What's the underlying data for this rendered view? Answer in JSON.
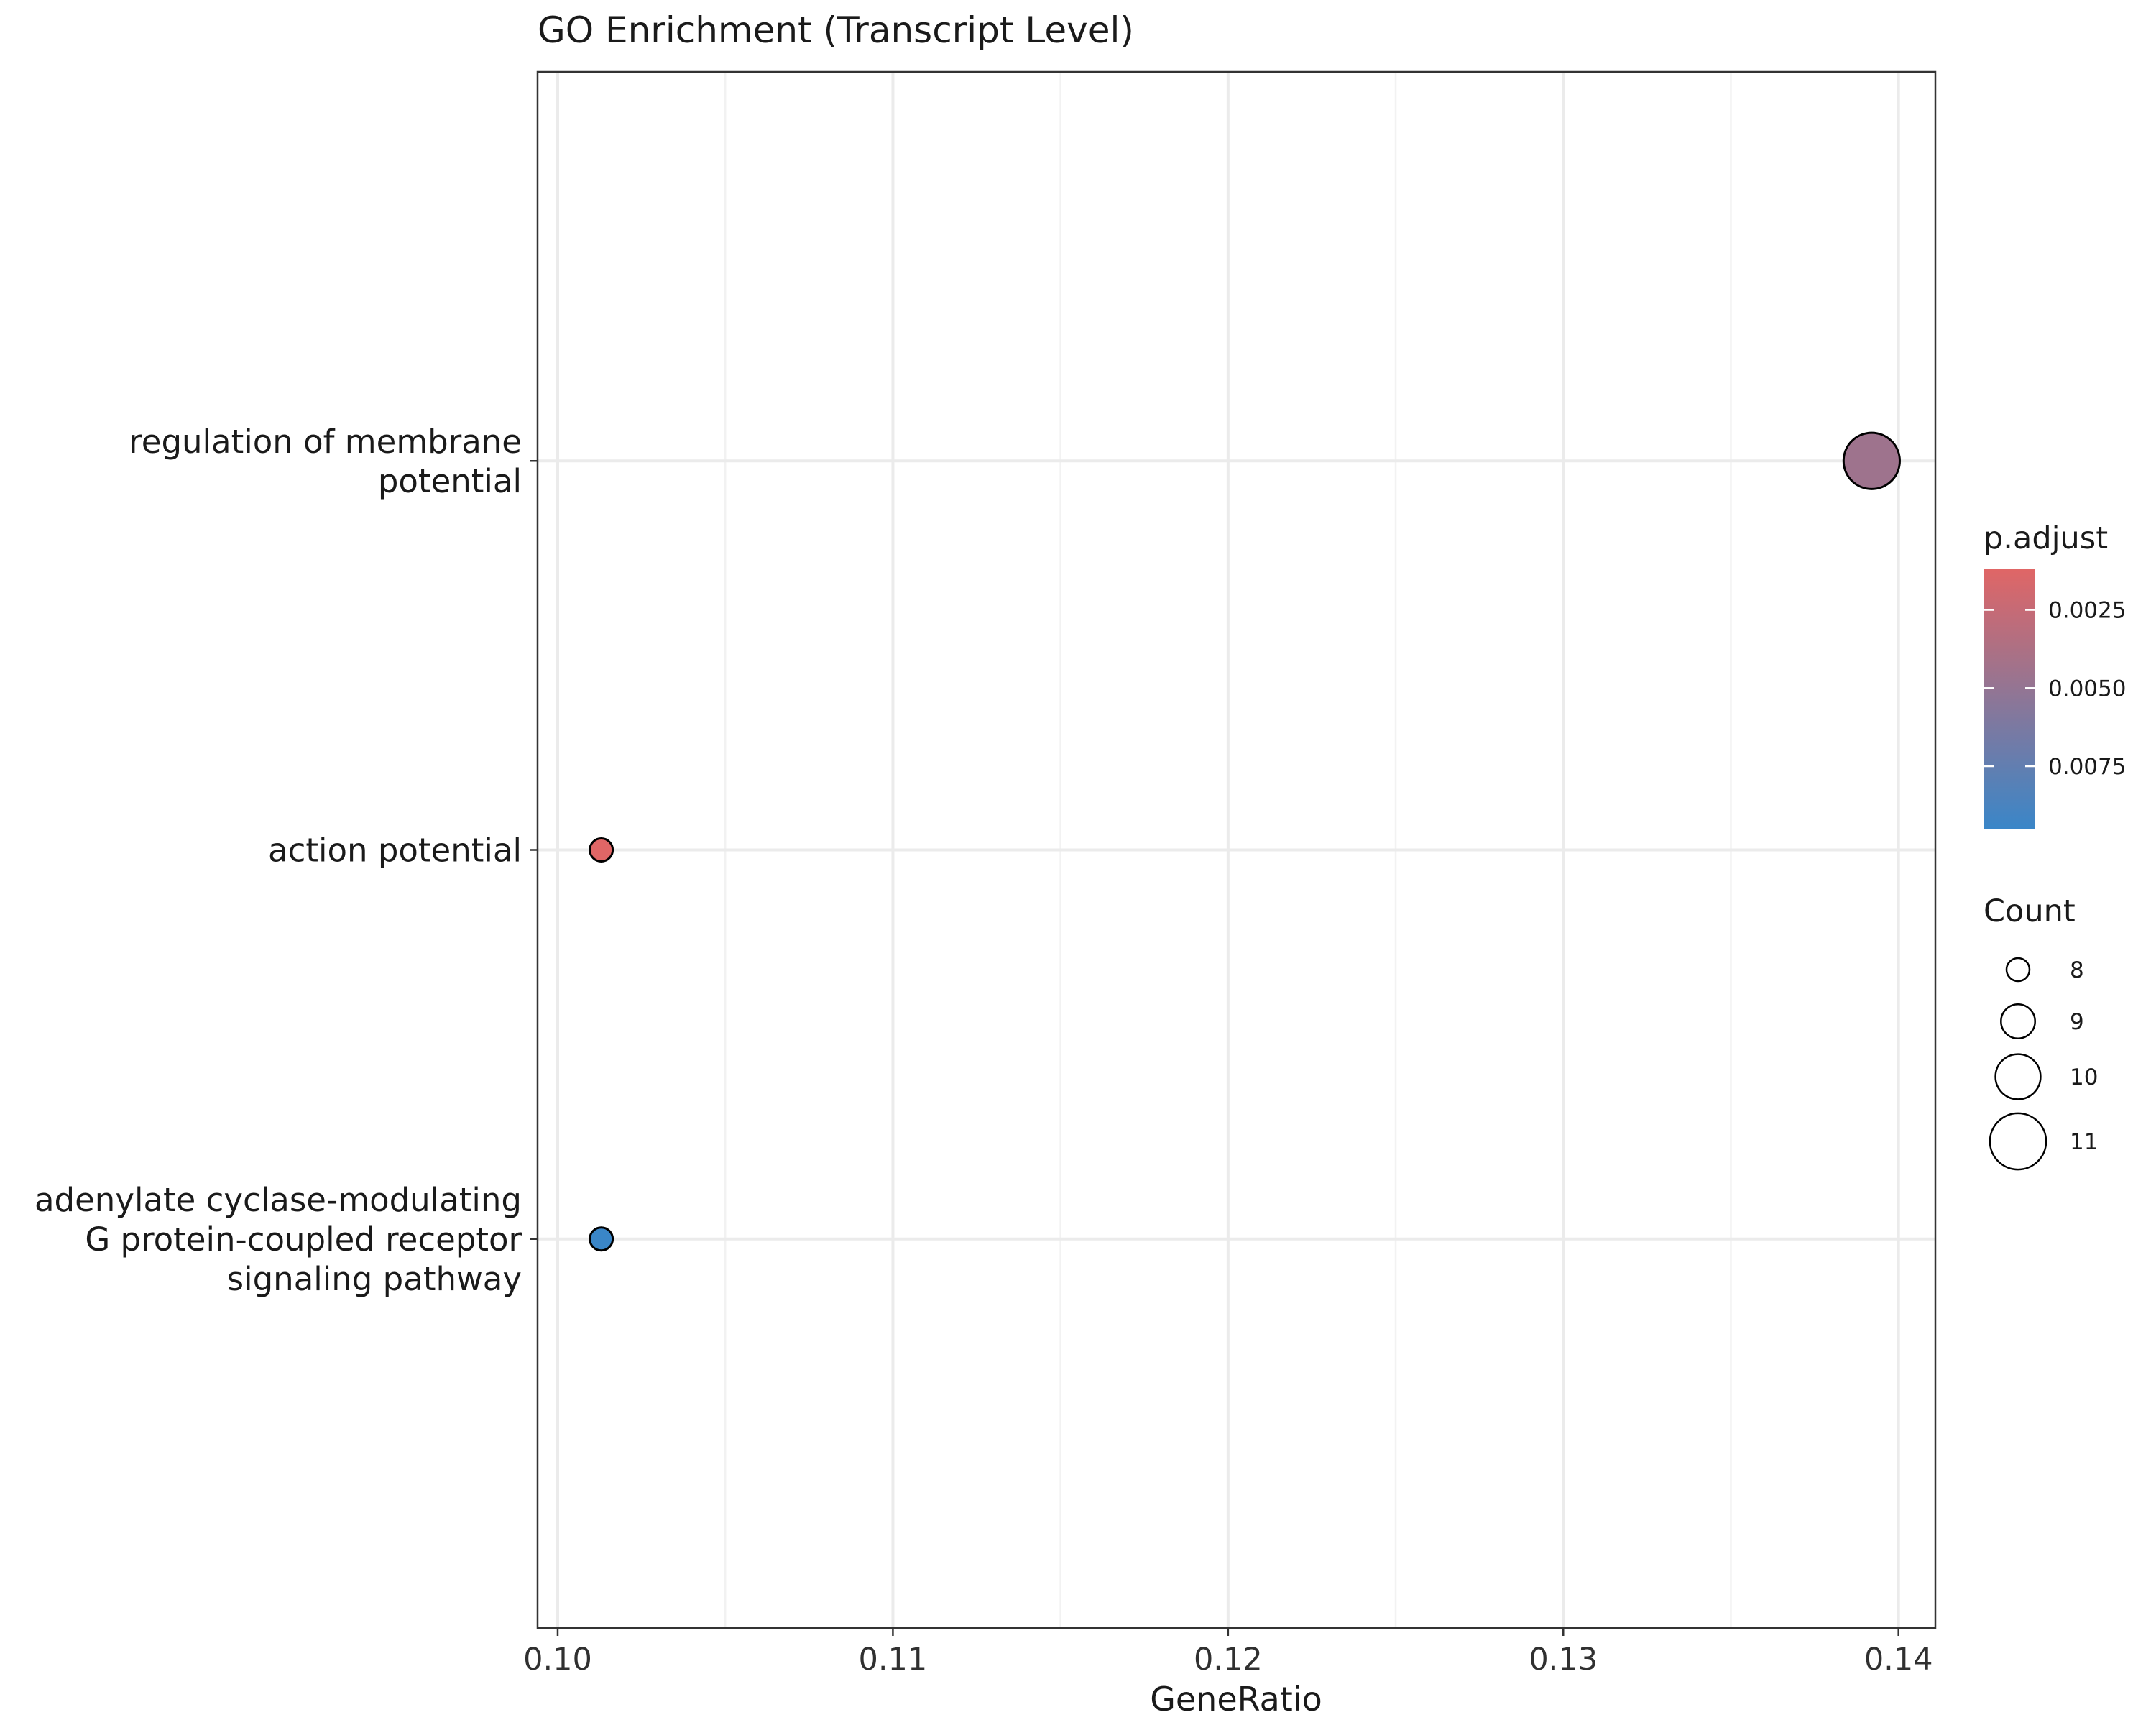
{
  "chart_data": {
    "type": "scatter",
    "title": "GO Enrichment (Transcript Level)",
    "xlabel": "GeneRatio",
    "ylabel": "",
    "xlim": [
      0.0994,
      0.1411
    ],
    "x_ticks": [
      "0.10",
      "0.11",
      "0.12",
      "0.13",
      "0.14"
    ],
    "x_tick_values": [
      0.1,
      0.11,
      0.12,
      0.13,
      0.14
    ],
    "categories": [
      "regulation of membrane\npotential",
      "action potential",
      "adenylate cyclase-modulating\nG protein-coupled receptor\nsignaling pathway"
    ],
    "points": [
      {
        "category": "regulation of membrane\npotential",
        "x": 0.1392,
        "count": 11,
        "p_adjust": 0.0045
      },
      {
        "category": "action potential",
        "x": 0.1013,
        "count": 8,
        "p_adjust": 0.0012
      },
      {
        "category": "adenylate cyclase-modulating\nG protein-coupled receptor\nsignaling pathway",
        "x": 0.1013,
        "count": 8,
        "p_adjust": 0.0095
      }
    ],
    "color_legend": {
      "title": "p.adjust",
      "min": 0.0012,
      "max": 0.0095,
      "ticks": [
        "0.0025",
        "0.0050",
        "0.0075"
      ],
      "tick_values": [
        0.0025,
        0.005,
        0.0075
      ],
      "low_color": "#e06666",
      "high_color": "#3a86c8"
    },
    "size_legend": {
      "title": "Count",
      "values": [
        8,
        9,
        10,
        11
      ],
      "labels": [
        "8",
        "9",
        "10",
        "11"
      ]
    },
    "grid": true,
    "legend_position": "right"
  }
}
